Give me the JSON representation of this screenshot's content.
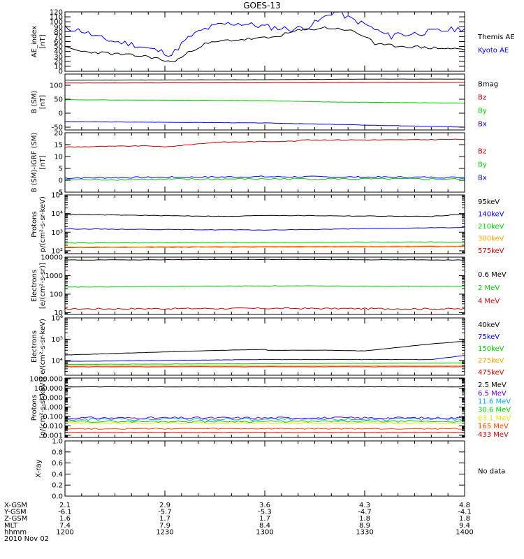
{
  "title": "GOES-13",
  "chart_data": [
    {
      "id": "ae",
      "type": "line",
      "ylabel": [
        "AE_index",
        "[nT]"
      ],
      "ylim": [
        0,
        120
      ],
      "log": false,
      "yticks": [
        0,
        10,
        20,
        30,
        40,
        50,
        60,
        70,
        80,
        90,
        100,
        110,
        120
      ],
      "yticklabels": [
        "0",
        "10",
        "20",
        "30",
        "40",
        "50",
        "60",
        "70",
        "80",
        "90",
        "100",
        "110",
        "120"
      ],
      "series": [
        {
          "name": "Kyoto AE",
          "color": "#0000ff",
          "noise": 6,
          "seed": 11,
          "points": [
            [
              1200,
              88
            ],
            [
              1205,
              82
            ],
            [
              1210,
              68
            ],
            [
              1215,
              60
            ],
            [
              1220,
              55
            ],
            [
              1225,
              46
            ],
            [
              1230,
              38
            ],
            [
              1232,
              33
            ],
            [
              1235,
              55
            ],
            [
              1238,
              72
            ],
            [
              1242,
              85
            ],
            [
              1247,
              95
            ],
            [
              1252,
              97
            ],
            [
              1258,
              92
            ],
            [
              1263,
              88
            ],
            [
              1268,
              85
            ],
            [
              1273,
              90
            ],
            [
              1277,
              105
            ],
            [
              1280,
              118
            ],
            [
              1282,
              120
            ],
            [
              1285,
              108
            ],
            [
              1290,
              95
            ],
            [
              1295,
              78
            ],
            [
              1298,
              70
            ],
            [
              1305,
              80
            ],
            [
              1312,
              85
            ],
            [
              1320,
              82
            ],
            [
              1328,
              78
            ],
            [
              1335,
              82
            ],
            [
              1342,
              74
            ],
            [
              1350,
              80
            ],
            [
              1360,
              87
            ],
            [
              1370,
              82
            ],
            [
              1380,
              80
            ],
            [
              1390,
              85
            ],
            [
              1398,
              82
            ],
            [
              1400,
              84
            ]
          ]
        },
        {
          "name": "Themis AE",
          "color": "#000000",
          "noise": 3,
          "seed": 23,
          "points": [
            [
              1200,
              48
            ],
            [
              1205,
              40
            ],
            [
              1210,
              38
            ],
            [
              1215,
              35
            ],
            [
              1220,
              32
            ],
            [
              1225,
              30
            ],
            [
              1228,
              25
            ],
            [
              1232,
              18
            ],
            [
              1235,
              28
            ],
            [
              1238,
              42
            ],
            [
              1242,
              55
            ],
            [
              1248,
              62
            ],
            [
              1255,
              65
            ],
            [
              1262,
              68
            ],
            [
              1270,
              82
            ],
            [
              1278,
              88
            ],
            [
              1285,
              84
            ],
            [
              1292,
              65
            ],
            [
              1300,
              60
            ],
            [
              1308,
              58
            ],
            [
              1318,
              55
            ],
            [
              1328,
              55
            ],
            [
              1338,
              52
            ],
            [
              1348,
              48
            ],
            [
              1358,
              45
            ],
            [
              1368,
              42
            ],
            [
              1378,
              40
            ],
            [
              1388,
              43
            ],
            [
              1395,
              47
            ],
            [
              1400,
              46
            ]
          ]
        }
      ]
    },
    {
      "id": "b_sm",
      "type": "line",
      "ylabel": [
        "B (SM)",
        "[nT]"
      ],
      "ylim": [
        -60,
        140
      ],
      "log": false,
      "yticks": [
        -50,
        0,
        50,
        100
      ],
      "yticklabels": [
        "-50",
        "0",
        "50",
        "100"
      ],
      "series": [
        {
          "name": "Bx",
          "color": "#0000ff",
          "noise": 0.5,
          "seed": 3,
          "points": [
            [
              1200,
              -30
            ],
            [
              1260,
              -35
            ],
            [
              1320,
              -40
            ],
            [
              1400,
              -50
            ]
          ]
        },
        {
          "name": "By",
          "color": "#00cc00",
          "noise": 0.5,
          "seed": 4,
          "points": [
            [
              1200,
              48
            ],
            [
              1260,
              45
            ],
            [
              1320,
              40
            ],
            [
              1400,
              36
            ]
          ]
        },
        {
          "name": "Bz",
          "color": "#cc0000",
          "noise": 0.3,
          "seed": 5,
          "points": [
            [
              1200,
              108
            ],
            [
              1260,
              109
            ],
            [
              1330,
              110
            ],
            [
              1400,
              110
            ]
          ]
        },
        {
          "name": "Bmag",
          "color": "#000000",
          "noise": 0.3,
          "seed": 6,
          "points": [
            [
              1200,
              118
            ],
            [
              1260,
              120
            ],
            [
              1330,
              122
            ],
            [
              1400,
              122
            ]
          ]
        }
      ]
    },
    {
      "id": "b_igrf",
      "type": "line",
      "ylabel": [
        "B (SM)-IGRF (SM)",
        "[nT]"
      ],
      "ylim": [
        -5,
        20
      ],
      "log": false,
      "yticks": [
        -5,
        0,
        5,
        10,
        15,
        20
      ],
      "yticklabels": [
        "-5",
        "0",
        "5",
        "10",
        "15",
        "20"
      ],
      "series": [
        {
          "name": "Bx",
          "color": "#0000ff",
          "noise": 0.35,
          "seed": 7,
          "points": [
            [
              1200,
              1
            ],
            [
              1300,
              1.5
            ],
            [
              1400,
              1.2
            ]
          ]
        },
        {
          "name": "By",
          "color": "#00cc00",
          "noise": 0.35,
          "seed": 8,
          "points": [
            [
              1200,
              0.2
            ],
            [
              1300,
              0.6
            ],
            [
              1400,
              0.5
            ]
          ]
        },
        {
          "name": "Bz",
          "color": "#cc0000",
          "noise": 0.15,
          "seed": 9,
          "points": [
            [
              1200,
              14
            ],
            [
              1225,
              14.5
            ],
            [
              1230,
              14
            ],
            [
              1245,
              16
            ],
            [
              1270,
              16.5
            ],
            [
              1300,
              17
            ],
            [
              1340,
              17
            ],
            [
              1380,
              17.5
            ],
            [
              1400,
              18.5
            ]
          ]
        }
      ]
    },
    {
      "id": "protons_mev",
      "type": "line",
      "ylabel": [
        "Protons",
        "p/(cm²-s-sr-keV)"
      ],
      "ylim": [
        70,
        100000
      ],
      "log": true,
      "yticks": [
        100,
        1000,
        10000,
        100000
      ],
      "yticklabels": [
        "10²",
        "10³",
        "10⁴",
        "10⁵"
      ],
      "series": [
        {
          "name": "575keV",
          "color": "#cc0000",
          "noise": 0.01,
          "seed": 12,
          "points": [
            [
              1200,
              150
            ],
            [
              1300,
              160
            ],
            [
              1400,
              170
            ]
          ]
        },
        {
          "name": "300keV",
          "color": "#ffa500",
          "noise": 0.01,
          "seed": 13,
          "points": [
            [
              1200,
              160
            ],
            [
              1300,
              170
            ],
            [
              1400,
              180
            ]
          ]
        },
        {
          "name": "210keV",
          "color": "#00cc00",
          "noise": 0.015,
          "seed": 14,
          "points": [
            [
              1200,
              260
            ],
            [
              1300,
              280
            ],
            [
              1400,
              300
            ]
          ]
        },
        {
          "name": "140keV",
          "color": "#0000ff",
          "noise": 0.015,
          "seed": 15,
          "points": [
            [
              1200,
              1500
            ],
            [
              1300,
              1300
            ],
            [
              1400,
              1800
            ]
          ]
        },
        {
          "name": "95keV",
          "color": "#000000",
          "noise": 0.015,
          "seed": 16,
          "points": [
            [
              1200,
              9000
            ],
            [
              1250,
              7000
            ],
            [
              1300,
              8000
            ],
            [
              1350,
              7000
            ],
            [
              1400,
              9500
            ]
          ]
        }
      ]
    },
    {
      "id": "electrons_mev",
      "type": "line",
      "ylabel": [
        "Electrons",
        "[e/(cm²-s-sr)]"
      ],
      "ylim": [
        8,
        10000
      ],
      "log": true,
      "yticks": [
        10,
        100,
        1000,
        10000
      ],
      "yticklabels": [
        "10",
        "100",
        "1000",
        "10000"
      ],
      "series": [
        {
          "name": "4 MeV",
          "color": "#cc0000",
          "noise": 0.04,
          "seed": 17,
          "points": [
            [
              1200,
              16
            ],
            [
              1300,
              17
            ],
            [
              1400,
              16
            ]
          ]
        },
        {
          "name": "2 MeV",
          "color": "#00cc00",
          "noise": 0.015,
          "seed": 18,
          "points": [
            [
              1200,
              240
            ],
            [
              1300,
              280
            ],
            [
              1400,
              260
            ]
          ]
        },
        {
          "name": "0.6 MeV",
          "color": "#000000",
          "noise": 0.01,
          "seed": 19,
          "points": [
            [
              1200,
              7000
            ],
            [
              1300,
              7500
            ],
            [
              1400,
              7000
            ]
          ]
        }
      ]
    },
    {
      "id": "electrons_kev",
      "type": "line",
      "ylabel": [
        "Electrons",
        "e/(cm²-s-sr-keV)"
      ],
      "ylim": [
        2000,
        1000000
      ],
      "log": true,
      "yticks": [
        10000,
        100000,
        1000000
      ],
      "yticklabels": [
        "10⁴",
        "10⁵",
        "10⁶"
      ],
      "series": [
        {
          "name": "475keV",
          "color": "#cc0000",
          "noise": 0.005,
          "seed": 20,
          "points": [
            [
              1200,
              5000
            ],
            [
              1300,
              5000
            ],
            [
              1400,
              5000
            ]
          ]
        },
        {
          "name": "275keV",
          "color": "#ffa500",
          "noise": 0.005,
          "seed": 21,
          "points": [
            [
              1200,
              5500
            ],
            [
              1300,
              5500
            ],
            [
              1400,
              5600
            ]
          ]
        },
        {
          "name": "150keV",
          "color": "#00cc00",
          "noise": 0.005,
          "seed": 22,
          "points": [
            [
              1200,
              6500
            ],
            [
              1300,
              7000
            ],
            [
              1400,
              7500
            ]
          ]
        },
        {
          "name": "75keV",
          "color": "#0000ff",
          "noise": 0.006,
          "seed": 24,
          "points": [
            [
              1200,
              9000
            ],
            [
              1260,
              11000
            ],
            [
              1300,
              11000
            ],
            [
              1350,
              11000
            ],
            [
              1400,
              17000
            ]
          ]
        },
        {
          "name": "40keV",
          "color": "#000000",
          "noise": 0.006,
          "seed": 25,
          "points": [
            [
              1200,
              18000
            ],
            [
              1240,
              28000
            ],
            [
              1260,
              33000
            ],
            [
              1300,
              30000
            ],
            [
              1320,
              30000
            ],
            [
              1330,
              28000
            ],
            [
              1350,
              60000
            ],
            [
              1380,
              140000
            ],
            [
              1400,
              170000
            ]
          ]
        }
      ]
    },
    {
      "id": "protons_hi",
      "type": "line",
      "ylabel": [
        "Protons",
        "[p/(cm²-s-sr-keV)]"
      ],
      "ylim": [
        0.0006,
        1200
      ],
      "log": true,
      "yticks": [
        0.001,
        0.01,
        0.1,
        1,
        10,
        100,
        1000
      ],
      "yticklabels": [
        "0.001",
        "0.010",
        "0.100",
        "1.000",
        "10.000",
        "100.000",
        "1000.000"
      ],
      "series": [
        {
          "name": "433 MeV",
          "color": "#cc0000",
          "noise": 0.03,
          "seed": 26,
          "points": [
            [
              1200,
              0.002
            ],
            [
              1400,
              0.002
            ]
          ]
        },
        {
          "name": "165 MeV",
          "color": "#ff4500",
          "noise": 0.06,
          "seed": 27,
          "points": [
            [
              1200,
              0.005
            ],
            [
              1400,
              0.005
            ]
          ]
        },
        {
          "name": "63.1 MeV",
          "color": "#e6e600",
          "noise": 0.08,
          "seed": 28,
          "points": [
            [
              1200,
              0.02
            ],
            [
              1400,
              0.02
            ]
          ]
        },
        {
          "name": "30.6 MeV",
          "color": "#00cc00",
          "noise": 0.1,
          "seed": 29,
          "points": [
            [
              1200,
              0.03
            ],
            [
              1400,
              0.03
            ]
          ]
        },
        {
          "name": "11.6 MeV",
          "color": "#00aaff",
          "noise": 0.15,
          "seed": 30,
          "points": [
            [
              1200,
              0.05
            ],
            [
              1400,
              0.05
            ]
          ]
        },
        {
          "name": "6.5 MeV",
          "color": "#6a00d0",
          "noise": 0.12,
          "seed": 31,
          "points": [
            [
              1200,
              0.07
            ],
            [
              1400,
              0.07
            ]
          ]
        },
        {
          "name": "2.5 MeV",
          "color": "#000000",
          "noise": 0.01,
          "seed": 32,
          "points": [
            [
              1200,
              140
            ],
            [
              1400,
              140
            ]
          ]
        }
      ]
    },
    {
      "id": "xray",
      "type": "line",
      "ylabel": [
        "X-ray"
      ],
      "ylim": [
        0,
        1
      ],
      "log": false,
      "yticks": [
        0,
        0.2,
        0.4,
        0.6,
        0.8,
        1.0
      ],
      "yticklabels": [
        "0.0",
        "0.2",
        "0.4",
        "0.6",
        "0.8",
        "1.0"
      ],
      "series": [],
      "note": "No data"
    }
  ],
  "xaxis": {
    "xlim": [
      1200,
      1400
    ],
    "ticks": [
      1200,
      1230,
      1300,
      1330,
      1400
    ],
    "minor_step": 5,
    "rows": [
      {
        "label": "X-GSM",
        "values": [
          "2.1",
          "2.9",
          "3.6",
          "4.3",
          "4.8"
        ]
      },
      {
        "label": "Y-GSM",
        "values": [
          "-6.1",
          "-5.7",
          "-5.3",
          "-4.7",
          "-4.1"
        ]
      },
      {
        "label": "Z-GSM",
        "values": [
          "1.6",
          "1.7",
          "1.7",
          "1.8",
          "1.8"
        ]
      },
      {
        "label": "MLT",
        "values": [
          "7.4",
          "7.9",
          "8.4",
          "8.9",
          "9.4"
        ]
      },
      {
        "label": "hhmm",
        "values": [
          "1200",
          "1230",
          "1300",
          "1330",
          "1400"
        ]
      }
    ],
    "date": "2010 Nov 02"
  }
}
